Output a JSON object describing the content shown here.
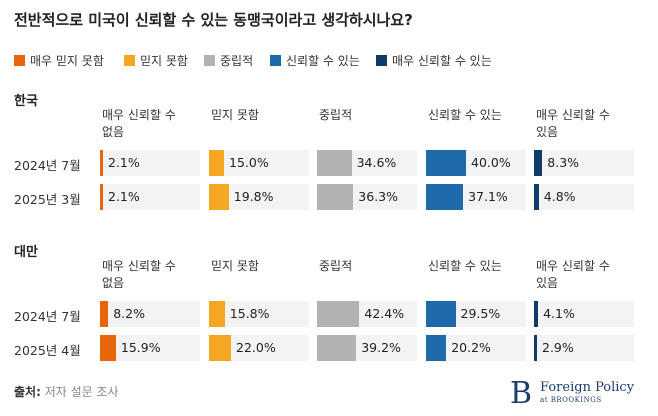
{
  "title": "전반적으로 미국이 신뢰할 수 있는 동맹국이라고 생각하시나요?",
  "colors": [
    "#e8650c",
    "#f5a623",
    "#b2b2b2",
    "#1f6aab",
    "#0f3b6b"
  ],
  "chart_data": {
    "type": "bar",
    "categories": [
      "매우 믿지 못함",
      "믿지 못함",
      "중립적",
      "신뢰할 수 있는",
      "매우 신뢰할 수 있는"
    ],
    "legend": [
      "매우 믿지 못함",
      "믿지 못함",
      "중립적",
      "신뢰할 수 있는",
      "매우 신뢰할 수 있는"
    ],
    "column_headers": [
      "매우 신뢰할 수 없음",
      "믿지 못함",
      "중립적",
      "신뢰할 수 있는",
      "매우 신뢰할 수 있음"
    ],
    "column_headers_lines": [
      [
        "매우 신뢰할 수",
        "없음"
      ],
      [
        "믿지 못함"
      ],
      [
        "중립적"
      ],
      [
        "신뢰할 수 있는"
      ],
      [
        "매우 신뢰할 수",
        "있음"
      ]
    ],
    "groups": [
      {
        "name": "한국",
        "rows": [
          {
            "label": "2024년 7월",
            "values": [
              2.1,
              15.0,
              34.6,
              40.0,
              8.3
            ],
            "labels": [
              "2.1%",
              "15.0%",
              "34.6%",
              "40.0%",
              "8.3%"
            ]
          },
          {
            "label": "2025년 3월",
            "values": [
              2.1,
              19.8,
              36.3,
              37.1,
              4.8
            ],
            "labels": [
              "2.1%",
              "19.8%",
              "36.3%",
              "37.1%",
              "4.8%"
            ]
          }
        ]
      },
      {
        "name": "대만",
        "rows": [
          {
            "label": "2024년 7월",
            "values": [
              8.2,
              15.8,
              42.4,
              29.5,
              4.1
            ],
            "labels": [
              "8.2%",
              "15.8%",
              "42.4%",
              "29.5%",
              "4.1%"
            ]
          },
          {
            "label": "2025년 4월",
            "values": [
              15.9,
              22.0,
              39.2,
              20.2,
              2.9
            ],
            "labels": [
              "15.9%",
              "22.0%",
              "39.2%",
              "20.2%",
              "2.9%"
            ]
          }
        ]
      }
    ],
    "value_max": 40
  },
  "footer": {
    "label": "출처:",
    "text": "저자 설문 조사"
  },
  "logo": {
    "mark": "B",
    "main": "Foreign Policy",
    "sub": "at BROOKINGS"
  }
}
